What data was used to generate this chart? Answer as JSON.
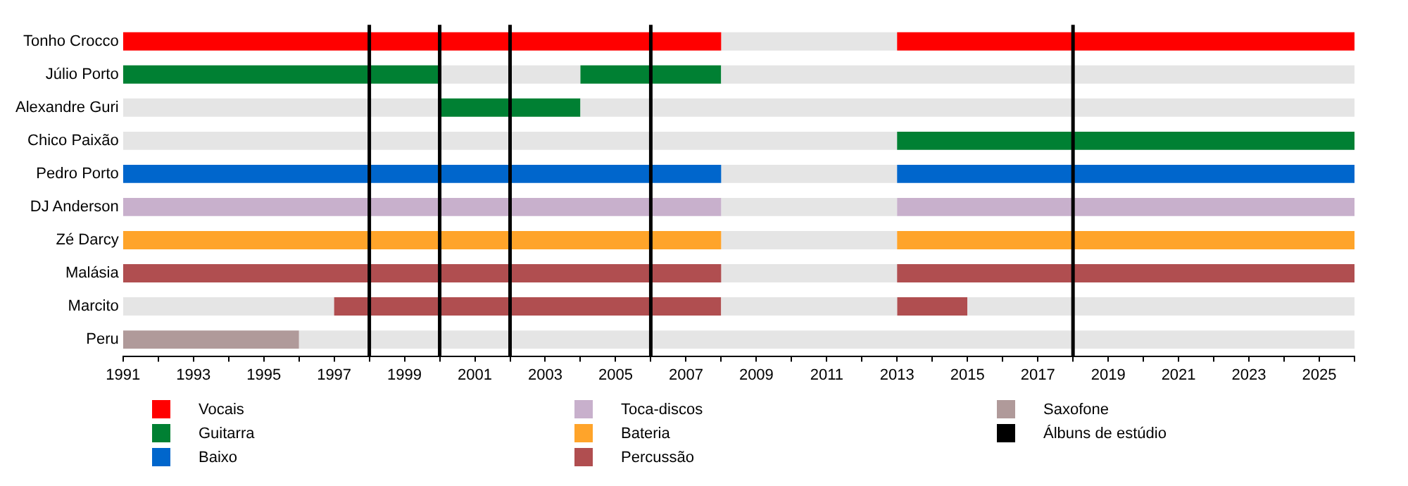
{
  "chart_data": {
    "type": "bar",
    "orientation": "horizontal",
    "legend": "bottom",
    "grid": false,
    "categories": [
      "Tonho Crocco",
      "Júlio Porto",
      "Alexandre Guri",
      "Chico Paixão",
      "Pedro Porto",
      "DJ Anderson",
      "Zé Darcy",
      "Malásia",
      "Marcito",
      "Peru"
    ],
    "xlim": [
      1991,
      2026
    ],
    "xticks": [
      1991,
      {
        "value": 1992,
        "label": null
      },
      1993,
      {
        "value": 1994,
        "label": null
      },
      1995,
      {
        "value": 1996,
        "label": null
      },
      1997,
      {
        "value": 1998,
        "label": null
      },
      1999,
      {
        "value": 2000,
        "label": null
      },
      2001,
      {
        "value": 2002,
        "label": null
      },
      2003,
      {
        "value": 2004,
        "label": null
      },
      2005,
      {
        "value": 2006,
        "label": null
      },
      2007,
      {
        "value": 2008,
        "label": null
      },
      2009,
      {
        "value": 2010,
        "label": null
      },
      2011,
      {
        "value": 2012,
        "label": null
      },
      2013,
      {
        "value": 2014,
        "label": null
      },
      2015,
      {
        "value": 2016,
        "label": null
      },
      2017,
      {
        "value": 2018,
        "label": null
      },
      2019,
      {
        "value": 2020,
        "label": null
      },
      2021,
      {
        "value": 2022,
        "label": null
      },
      2023,
      {
        "value": 2024,
        "label": null
      },
      2025,
      {
        "value": 2026,
        "label": null
      }
    ],
    "series": [
      {
        "color": "#e5e5e5",
        "base": [
          2008,
          2000,
          1991,
          1991,
          2008,
          2008,
          2008,
          2008,
          1991,
          1996
        ],
        "values": [
          5,
          4,
          9,
          22,
          5,
          5,
          5,
          5,
          6,
          30
        ]
      },
      {
        "color": "#e5e5e5",
        "base": [
          null,
          2008,
          2004,
          null,
          null,
          null,
          null,
          null,
          2008,
          null
        ],
        "values": [
          null,
          18,
          22,
          null,
          null,
          null,
          null,
          null,
          5,
          null
        ]
      },
      {
        "color": "#e5e5e5",
        "base": [
          null,
          null,
          null,
          null,
          null,
          null,
          null,
          null,
          2015,
          null
        ],
        "values": [
          null,
          null,
          null,
          null,
          null,
          null,
          null,
          null,
          11,
          null
        ]
      },
      {
        "name": "Vocais",
        "color": "#ff0000",
        "base": [
          1991,
          null,
          null,
          null,
          null,
          null,
          null,
          null,
          null,
          null
        ],
        "values": [
          17,
          null,
          null,
          null,
          null,
          null,
          null,
          null,
          null,
          null
        ]
      },
      {
        "color": "#ff0000",
        "base": [
          2013,
          null,
          null,
          null,
          null,
          null,
          null,
          null,
          null,
          null
        ],
        "values": [
          13,
          null,
          null,
          null,
          null,
          null,
          null,
          null,
          null,
          null
        ]
      },
      {
        "name": "Guitarra",
        "color": "#008033",
        "base": [
          null,
          1991,
          2000,
          2013,
          null,
          null,
          null,
          null,
          null,
          null
        ],
        "values": [
          null,
          9,
          4,
          13,
          null,
          null,
          null,
          null,
          null,
          null
        ]
      },
      {
        "color": "#008033",
        "base": [
          null,
          2004,
          null,
          null,
          null,
          null,
          null,
          null,
          null,
          null
        ],
        "values": [
          null,
          4,
          null,
          null,
          null,
          null,
          null,
          null,
          null,
          null
        ]
      },
      {
        "name": "Baixo",
        "color": "#0066cc",
        "base": [
          null,
          null,
          null,
          null,
          1991,
          null,
          null,
          null,
          null,
          null
        ],
        "values": [
          null,
          null,
          null,
          null,
          17,
          null,
          null,
          null,
          null,
          null
        ]
      },
      {
        "color": "#0066cc",
        "base": [
          null,
          null,
          null,
          null,
          2013,
          null,
          null,
          null,
          null,
          null
        ],
        "values": [
          null,
          null,
          null,
          null,
          13,
          null,
          null,
          null,
          null,
          null
        ]
      },
      {
        "name": "Toca-discos",
        "color": "#c8b0cc",
        "base": [
          null,
          null,
          null,
          null,
          null,
          1991,
          null,
          null,
          null,
          null
        ],
        "values": [
          null,
          null,
          null,
          null,
          null,
          17,
          null,
          null,
          null,
          null
        ]
      },
      {
        "color": "#c8b0cc",
        "base": [
          null,
          null,
          null,
          null,
          null,
          2013,
          null,
          null,
          null,
          null
        ],
        "values": [
          null,
          null,
          null,
          null,
          null,
          13,
          null,
          null,
          null,
          null
        ]
      },
      {
        "name": "Bateria",
        "color": "#ffa42a",
        "base": [
          null,
          null,
          null,
          null,
          null,
          null,
          1991,
          null,
          null,
          null
        ],
        "values": [
          null,
          null,
          null,
          null,
          null,
          null,
          17,
          null,
          null,
          null
        ]
      },
      {
        "color": "#ffa42a",
        "base": [
          null,
          null,
          null,
          null,
          null,
          null,
          2013,
          null,
          null,
          null
        ],
        "values": [
          null,
          null,
          null,
          null,
          null,
          null,
          13,
          null,
          null,
          null
        ]
      },
      {
        "name": "Percussão",
        "color": "#b04e50",
        "base": [
          null,
          null,
          null,
          null,
          null,
          null,
          null,
          1991,
          1997,
          null
        ],
        "values": [
          null,
          null,
          null,
          null,
          null,
          null,
          null,
          17,
          11,
          null
        ]
      },
      {
        "color": "#b04e50",
        "base": [
          null,
          null,
          null,
          null,
          null,
          null,
          null,
          2013,
          2013,
          null
        ],
        "values": [
          null,
          null,
          null,
          null,
          null,
          null,
          null,
          13,
          2,
          null
        ]
      },
      {
        "name": "Saxofone",
        "color": "#b09a9a",
        "base": [
          null,
          null,
          null,
          null,
          null,
          null,
          null,
          null,
          null,
          1991
        ],
        "values": [
          null,
          null,
          null,
          null,
          null,
          null,
          null,
          null,
          null,
          5
        ]
      }
    ],
    "ref_lines": [
      {
        "axis": "x",
        "value": 1998,
        "label": "Álbuns de estúdio",
        "color": "#000000"
      },
      {
        "axis": "x",
        "value": 2000,
        "color": "#000000"
      },
      {
        "axis": "x",
        "value": 2002,
        "color": "#000000"
      },
      {
        "axis": "x",
        "value": 2006,
        "color": "#000000"
      },
      {
        "axis": "x",
        "value": 2018,
        "color": "#000000"
      }
    ]
  }
}
